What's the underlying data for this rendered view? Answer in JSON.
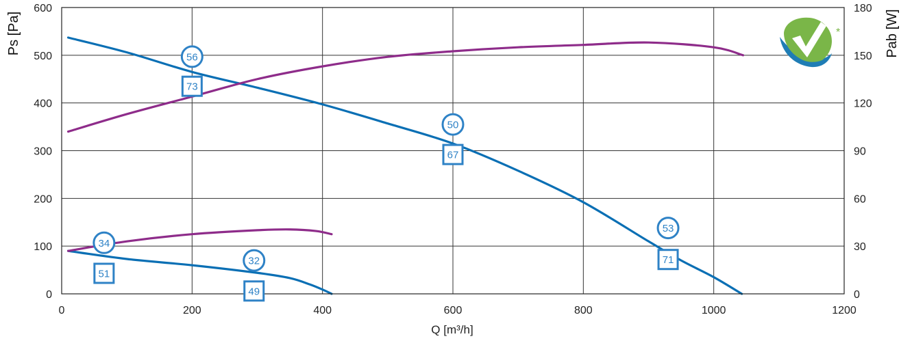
{
  "chart_data": {
    "type": "line",
    "xlabel": "Q [m³/h]",
    "ylabel": "Ps [Pa]",
    "y2label": "Pab [W]",
    "xlim": [
      0,
      1200
    ],
    "ylim": [
      0,
      600
    ],
    "y2lim": [
      0,
      180
    ],
    "x_ticks": [
      0,
      200,
      400,
      600,
      800,
      1000,
      1200
    ],
    "y_ticks": [
      0,
      100,
      200,
      300,
      400,
      500,
      600
    ],
    "y2_ticks": [
      0,
      30,
      60,
      90,
      120,
      150,
      180
    ],
    "grid": true,
    "series": [
      {
        "axis": "left",
        "color": "#0a6fb4",
        "points": [
          [
            10,
            537
          ],
          [
            100,
            506
          ],
          [
            200,
            465
          ],
          [
            300,
            432
          ],
          [
            400,
            397
          ],
          [
            500,
            357
          ],
          [
            600,
            315
          ],
          [
            700,
            258
          ],
          [
            800,
            192
          ],
          [
            900,
            110
          ],
          [
            950,
            70
          ],
          [
            1000,
            35
          ],
          [
            1043,
            0
          ]
        ]
      },
      {
        "axis": "right",
        "color": "#8e2c8a",
        "points": [
          [
            10,
            102
          ],
          [
            100,
            113
          ],
          [
            200,
            124
          ],
          [
            300,
            135
          ],
          [
            400,
            143
          ],
          [
            500,
            149
          ],
          [
            600,
            152.5
          ],
          [
            700,
            155
          ],
          [
            800,
            156.5
          ],
          [
            900,
            158
          ],
          [
            1000,
            155
          ],
          [
            1045,
            150
          ]
        ]
      },
      {
        "axis": "left",
        "color": "#0a6fb4",
        "points": [
          [
            10,
            90
          ],
          [
            100,
            73
          ],
          [
            200,
            60
          ],
          [
            300,
            44
          ],
          [
            350,
            33
          ],
          [
            380,
            20
          ],
          [
            400,
            9
          ],
          [
            414,
            0
          ]
        ]
      },
      {
        "axis": "right",
        "color": "#8e2c8a",
        "points": [
          [
            10,
            27
          ],
          [
            100,
            33
          ],
          [
            200,
            37.5
          ],
          [
            300,
            40
          ],
          [
            350,
            40.5
          ],
          [
            390,
            39.5
          ],
          [
            414,
            37.5
          ]
        ]
      }
    ],
    "markers": [
      {
        "shape": "circle",
        "label": "56",
        "x": 200,
        "y": 497
      },
      {
        "shape": "square",
        "label": "73",
        "x": 200,
        "y": 435
      },
      {
        "shape": "circle",
        "label": "50",
        "x": 600,
        "y": 355
      },
      {
        "shape": "square",
        "label": "67",
        "x": 600,
        "y": 292
      },
      {
        "shape": "circle",
        "label": "53",
        "x": 930,
        "y": 138
      },
      {
        "shape": "square",
        "label": "71",
        "x": 930,
        "y": 72
      },
      {
        "shape": "circle",
        "label": "34",
        "x": 65,
        "y": 107
      },
      {
        "shape": "square",
        "label": "51",
        "x": 65,
        "y": 43
      },
      {
        "shape": "circle",
        "label": "32",
        "x": 295,
        "y": 70
      },
      {
        "shape": "square",
        "label": "49",
        "x": 295,
        "y": 6
      }
    ]
  },
  "logo": {
    "name": "green-checkmark-logo",
    "star": "*",
    "colors": {
      "green": "#7ab648",
      "blue": "#1f7db5"
    }
  }
}
